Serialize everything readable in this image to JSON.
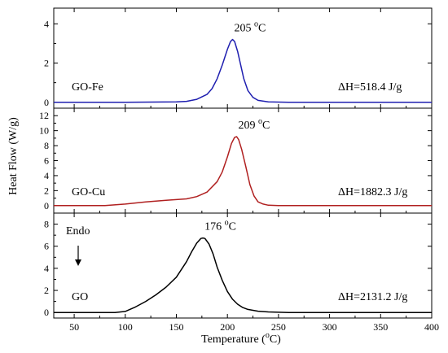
{
  "chart_data": {
    "type": "line",
    "xlabel_base": "Temperature (",
    "xlabel_sup": "o",
    "xlabel_end": "C)",
    "ylabel": "Heat Flow (W/g)",
    "xlim": [
      30,
      400
    ],
    "xticks": [
      50,
      100,
      150,
      200,
      250,
      300,
      350,
      400
    ],
    "panels": [
      {
        "name": "GO-Fe",
        "label": "GO-Fe",
        "color": "#1f1fb0",
        "ylim": [
          -0.3,
          4.8
        ],
        "yticks": [
          0,
          2,
          4
        ],
        "peak_label": "205",
        "peak_unit_sup": "o",
        "peak_unit": "C",
        "enthalpy": "ΔH=518.4 J/g",
        "x": [
          30,
          100,
          150,
          160,
          170,
          180,
          185,
          190,
          195,
          200,
          203,
          205,
          207,
          210,
          213,
          216,
          220,
          225,
          230,
          240,
          260,
          300,
          400
        ],
        "y": [
          0,
          0,
          0.02,
          0.05,
          0.15,
          0.4,
          0.7,
          1.2,
          1.9,
          2.7,
          3.1,
          3.2,
          3.1,
          2.6,
          1.9,
          1.2,
          0.6,
          0.25,
          0.1,
          0.02,
          0,
          0,
          0
        ]
      },
      {
        "name": "GO-Cu",
        "label": "GO-Cu",
        "color": "#b02020",
        "ylim": [
          -1,
          13
        ],
        "yticks": [
          0,
          2,
          4,
          6,
          8,
          10,
          12
        ],
        "peak_label": "209",
        "peak_unit_sup": "o",
        "peak_unit": "C",
        "enthalpy": "ΔH=1882.3 J/g",
        "x": [
          30,
          80,
          100,
          120,
          140,
          160,
          170,
          180,
          190,
          195,
          200,
          204,
          207,
          209,
          211,
          214,
          218,
          222,
          226,
          230,
          235,
          240,
          250,
          270,
          300,
          400
        ],
        "y": [
          0,
          0,
          0.2,
          0.5,
          0.7,
          0.9,
          1.2,
          1.8,
          3.2,
          4.5,
          6.5,
          8.3,
          9.1,
          9.2,
          8.8,
          7.5,
          5.2,
          2.8,
          1.3,
          0.5,
          0.2,
          0.05,
          0,
          0,
          0,
          0
        ]
      },
      {
        "name": "GO",
        "label": "GO",
        "color": "#000000",
        "ylim": [
          -0.5,
          9
        ],
        "yticks": [
          0,
          2,
          4,
          6,
          8
        ],
        "peak_label": "176",
        "peak_unit_sup": "o",
        "peak_unit": "C",
        "enthalpy": "ΔH=2131.2 J/g",
        "endo_label": "Endo",
        "x": [
          30,
          90,
          100,
          110,
          120,
          130,
          140,
          150,
          160,
          165,
          170,
          174,
          176,
          178,
          182,
          186,
          190,
          195,
          200,
          205,
          210,
          215,
          220,
          230,
          240,
          260,
          300,
          400
        ],
        "y": [
          0,
          0,
          0.1,
          0.5,
          1.0,
          1.6,
          2.3,
          3.2,
          4.6,
          5.5,
          6.3,
          6.7,
          6.75,
          6.7,
          6.2,
          5.3,
          4.1,
          2.9,
          1.9,
          1.2,
          0.75,
          0.45,
          0.28,
          0.12,
          0.05,
          0,
          0,
          0
        ]
      }
    ]
  }
}
